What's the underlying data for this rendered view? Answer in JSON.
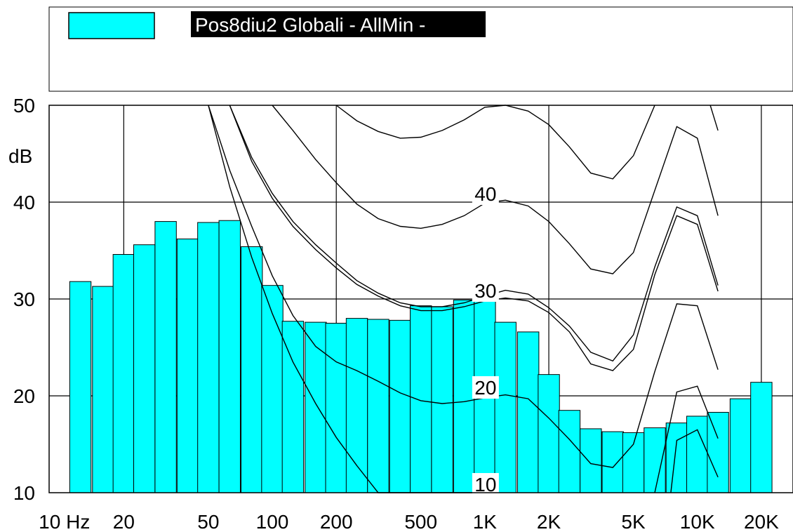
{
  "chart_data": {
    "type": "bar",
    "title": "",
    "ylabel": "dB",
    "xlabel": "",
    "x_scale": "log",
    "xlim": [
      8.91,
      28183.8
    ],
    "ylim": [
      10,
      50
    ],
    "grid": true,
    "legend": {
      "placement": "top",
      "entries": [
        {
          "name": "Pos8diu2 Globali - AllMin -",
          "color": "#00ffff"
        }
      ]
    },
    "x_tick_labels": [
      {
        "value": 10,
        "label": "10 Hz"
      },
      {
        "value": 20,
        "label": "20"
      },
      {
        "value": 50,
        "label": "50"
      },
      {
        "value": 100,
        "label": "100"
      },
      {
        "value": 200,
        "label": "200"
      },
      {
        "value": 500,
        "label": "500"
      },
      {
        "value": 1000,
        "label": "1K"
      },
      {
        "value": 2000,
        "label": "2K"
      },
      {
        "value": 5000,
        "label": "5K"
      },
      {
        "value": 10000,
        "label": "10K"
      },
      {
        "value": 20000,
        "label": "20K"
      }
    ],
    "x_gridlines": [
      20,
      200,
      2000,
      20000
    ],
    "y_ticks": [
      10,
      20,
      30,
      40,
      50
    ],
    "series": [
      {
        "name": "Pos8diu2 Globali - AllMin -",
        "color": "#00ffff",
        "bars": [
          {
            "f": 12.5,
            "v": 31.8
          },
          {
            "f": 16,
            "v": 31.3
          },
          {
            "f": 20,
            "v": 34.6
          },
          {
            "f": 25,
            "v": 35.6
          },
          {
            "f": 31.5,
            "v": 38.0
          },
          {
            "f": 40,
            "v": 36.2
          },
          {
            "f": 50,
            "v": 37.9
          },
          {
            "f": 63,
            "v": 38.1
          },
          {
            "f": 80,
            "v": 35.4
          },
          {
            "f": 100,
            "v": 31.4
          },
          {
            "f": 125,
            "v": 27.7
          },
          {
            "f": 160,
            "v": 27.6
          },
          {
            "f": 200,
            "v": 27.5
          },
          {
            "f": 250,
            "v": 28.0
          },
          {
            "f": 315,
            "v": 27.9
          },
          {
            "f": 400,
            "v": 27.8
          },
          {
            "f": 500,
            "v": 29.3
          },
          {
            "f": 630,
            "v": 29.2
          },
          {
            "f": 800,
            "v": 29.9
          },
          {
            "f": 1000,
            "v": 29.8
          },
          {
            "f": 1250,
            "v": 27.6
          },
          {
            "f": 1600,
            "v": 26.6
          },
          {
            "f": 2000,
            "v": 22.2
          },
          {
            "f": 2500,
            "v": 18.5
          },
          {
            "f": 3150,
            "v": 16.6
          },
          {
            "f": 4000,
            "v": 16.3
          },
          {
            "f": 5000,
            "v": 16.2
          },
          {
            "f": 6300,
            "v": 16.7
          },
          {
            "f": 8000,
            "v": 17.2
          },
          {
            "f": 10000,
            "v": 17.9
          },
          {
            "f": 12500,
            "v": 18.3
          },
          {
            "f": 16000,
            "v": 19.7
          },
          {
            "f": 20000,
            "v": 21.4
          }
        ]
      }
    ],
    "contour_labels": [
      {
        "label": "10",
        "value": 10
      },
      {
        "label": "20",
        "value": 20
      },
      {
        "label": "30",
        "value": 30
      },
      {
        "label": "40",
        "value": 40
      }
    ],
    "contours": [
      {
        "level": 10,
        "points": [
          [
            50,
            50
          ],
          [
            63,
            41.6
          ],
          [
            80,
            34.3
          ],
          [
            100,
            28.5
          ],
          [
            125,
            23.5
          ],
          [
            160,
            19.2
          ],
          [
            200,
            15.7
          ],
          [
            250,
            12.8
          ],
          [
            315,
            10
          ],
          [
            400,
            10
          ],
          [
            500,
            10
          ],
          [
            630,
            10
          ],
          [
            800,
            10
          ],
          [
            1000,
            10
          ]
        ]
      },
      {
        "level": 20,
        "points": [
          [
            50,
            50
          ],
          [
            63,
            43.3
          ],
          [
            80,
            37.5
          ],
          [
            100,
            32.4
          ],
          [
            125,
            28.3
          ],
          [
            160,
            25.1
          ],
          [
            200,
            23.5
          ],
          [
            250,
            22.6
          ],
          [
            315,
            21.5
          ],
          [
            400,
            20.3
          ],
          [
            500,
            19.5
          ],
          [
            630,
            19.2
          ],
          [
            800,
            19.4
          ],
          [
            1000,
            19.8
          ],
          [
            1250,
            20.1
          ],
          [
            1600,
            19.7
          ],
          [
            2000,
            17.7
          ],
          [
            2500,
            15.5
          ],
          [
            3150,
            13.0
          ],
          [
            4000,
            12.6
          ],
          [
            5000,
            15.0
          ],
          [
            6300,
            22.5
          ],
          [
            8000,
            29.5
          ],
          [
            10000,
            29.3
          ],
          [
            12500,
            22.7
          ]
        ]
      },
      {
        "level": 30,
        "points": [
          [
            63,
            50
          ],
          [
            80,
            44.2
          ],
          [
            100,
            40.4
          ],
          [
            125,
            37.5
          ],
          [
            160,
            35.1
          ],
          [
            200,
            33.2
          ],
          [
            250,
            31.5
          ],
          [
            315,
            30.3
          ],
          [
            400,
            29.3
          ],
          [
            500,
            28.8
          ],
          [
            630,
            28.8
          ],
          [
            800,
            29.2
          ],
          [
            1000,
            29.8
          ],
          [
            1250,
            30.1
          ],
          [
            1600,
            29.8
          ],
          [
            2000,
            28.6
          ],
          [
            2500,
            26.6
          ],
          [
            3150,
            23.3
          ],
          [
            4000,
            22.6
          ],
          [
            5000,
            24.8
          ],
          [
            6300,
            32.5
          ],
          [
            8000,
            38.6
          ],
          [
            10000,
            37.7
          ],
          [
            12500,
            30.8
          ]
        ]
      },
      {
        "level": 30,
        "points": [
          [
            63,
            50
          ],
          [
            80,
            44.6
          ],
          [
            100,
            40.9
          ],
          [
            125,
            38.0
          ],
          [
            160,
            35.6
          ],
          [
            200,
            33.7
          ],
          [
            250,
            31.9
          ],
          [
            315,
            30.6
          ],
          [
            400,
            29.6
          ],
          [
            500,
            29.2
          ],
          [
            630,
            29.2
          ],
          [
            800,
            29.6
          ],
          [
            1000,
            30.3
          ],
          [
            1250,
            30.9
          ],
          [
            1600,
            30.5
          ],
          [
            2000,
            29.1
          ],
          [
            2500,
            27.2
          ],
          [
            3150,
            24.5
          ],
          [
            4000,
            23.6
          ],
          [
            5000,
            26.3
          ],
          [
            6300,
            33.3
          ],
          [
            8000,
            39.5
          ],
          [
            10000,
            38.6
          ],
          [
            12500,
            31.4
          ]
        ]
      },
      {
        "level": 40,
        "points": [
          [
            100,
            50
          ],
          [
            125,
            47.4
          ],
          [
            160,
            44.4
          ],
          [
            200,
            42.0
          ],
          [
            250,
            39.8
          ],
          [
            315,
            38.3
          ],
          [
            400,
            37.5
          ],
          [
            500,
            37.3
          ],
          [
            630,
            37.7
          ],
          [
            800,
            38.6
          ],
          [
            1000,
            39.9
          ],
          [
            1250,
            40.2
          ],
          [
            1600,
            39.6
          ],
          [
            2000,
            38.0
          ],
          [
            2500,
            35.7
          ],
          [
            3150,
            33.1
          ],
          [
            4000,
            32.6
          ],
          [
            5000,
            34.8
          ],
          [
            6300,
            41.2
          ],
          [
            8000,
            47.8
          ],
          [
            10000,
            46.6
          ],
          [
            12500,
            38.6
          ]
        ]
      },
      {
        "level": 50,
        "points": [
          [
            200,
            50
          ],
          [
            250,
            48.4
          ],
          [
            315,
            47.3
          ],
          [
            400,
            46.6
          ],
          [
            500,
            46.7
          ],
          [
            630,
            47.4
          ],
          [
            800,
            48.5
          ],
          [
            1000,
            49.8
          ],
          [
            1250,
            50
          ],
          [
            1600,
            49.4
          ],
          [
            2000,
            48.0
          ],
          [
            2500,
            45.7
          ],
          [
            3150,
            43.0
          ],
          [
            4000,
            42.4
          ],
          [
            5000,
            44.8
          ],
          [
            6300,
            50
          ]
        ]
      },
      {
        "level": 50,
        "points": [
          [
            11500,
            50
          ],
          [
            12500,
            47.4
          ]
        ]
      },
      {
        "level": 10,
        "points": [
          [
            6300,
            10
          ],
          [
            8000,
            20.4
          ],
          [
            10000,
            21.0
          ],
          [
            12500,
            15.6
          ]
        ]
      },
      {
        "level": 10,
        "points": [
          [
            7500,
            10
          ],
          [
            8000,
            15.4
          ],
          [
            10000,
            16.5
          ],
          [
            12500,
            11.6
          ]
        ]
      }
    ]
  }
}
